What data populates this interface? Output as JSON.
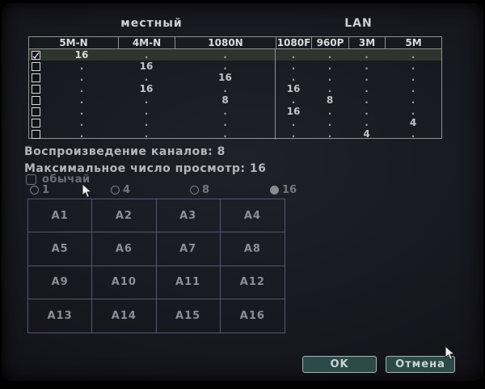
{
  "dialog": {
    "sections": {
      "local_label": "местный",
      "lan_label": "LAN"
    },
    "table": {
      "columns": [
        "5M-N",
        "4M-N",
        "1080N",
        "1080F",
        "960P",
        "3M",
        "5M"
      ],
      "rows": [
        {
          "checked": true,
          "highlighted": true,
          "cells": [
            "16",
            ".",
            ".",
            ".",
            ".",
            ".",
            "."
          ]
        },
        {
          "checked": false,
          "highlighted": false,
          "cells": [
            ".",
            "16",
            ".",
            ".",
            ".",
            ".",
            "."
          ]
        },
        {
          "checked": false,
          "highlighted": false,
          "cells": [
            ".",
            ".",
            "16",
            ".",
            ".",
            ".",
            "."
          ]
        },
        {
          "checked": false,
          "highlighted": false,
          "cells": [
            ".",
            "16",
            ".",
            "16",
            ".",
            ".",
            "."
          ]
        },
        {
          "checked": false,
          "highlighted": false,
          "cells": [
            ".",
            ".",
            "8",
            ".",
            "8",
            ".",
            "."
          ]
        },
        {
          "checked": false,
          "highlighted": false,
          "cells": [
            ".",
            ".",
            ".",
            "16",
            ".",
            ".",
            "."
          ]
        },
        {
          "checked": false,
          "highlighted": false,
          "cells": [
            ".",
            ".",
            ".",
            ".",
            ".",
            ".",
            "4"
          ]
        },
        {
          "checked": false,
          "highlighted": false,
          "cells": [
            ".",
            ".",
            ".",
            ".",
            ".",
            "4",
            "."
          ]
        }
      ]
    },
    "info": {
      "playback_channels": "Воспроизведение каналов: 8",
      "max_preview": "Максимальное число просмотр: 16"
    },
    "custom_mode": {
      "label": "обычай",
      "checked": false
    },
    "view_options": [
      {
        "label": "1",
        "selected": false
      },
      {
        "label": "4",
        "selected": false
      },
      {
        "label": "8",
        "selected": false
      },
      {
        "label": "16",
        "selected": true
      }
    ],
    "channels": [
      "A1",
      "A2",
      "A3",
      "A4",
      "A5",
      "A6",
      "A7",
      "A8",
      "A9",
      "A10",
      "A11",
      "A12",
      "A13",
      "A14",
      "A15",
      "A16"
    ],
    "buttons": {
      "ok": "OK",
      "cancel": "Отмена"
    },
    "colors": {
      "grid_line": "#5c5374",
      "button_bg": "#2c4a48",
      "highlight_row": "#30342e",
      "table_border": "#90908e",
      "text_primary": "#c4c4c6",
      "text_dim": "#6e6e76"
    }
  }
}
